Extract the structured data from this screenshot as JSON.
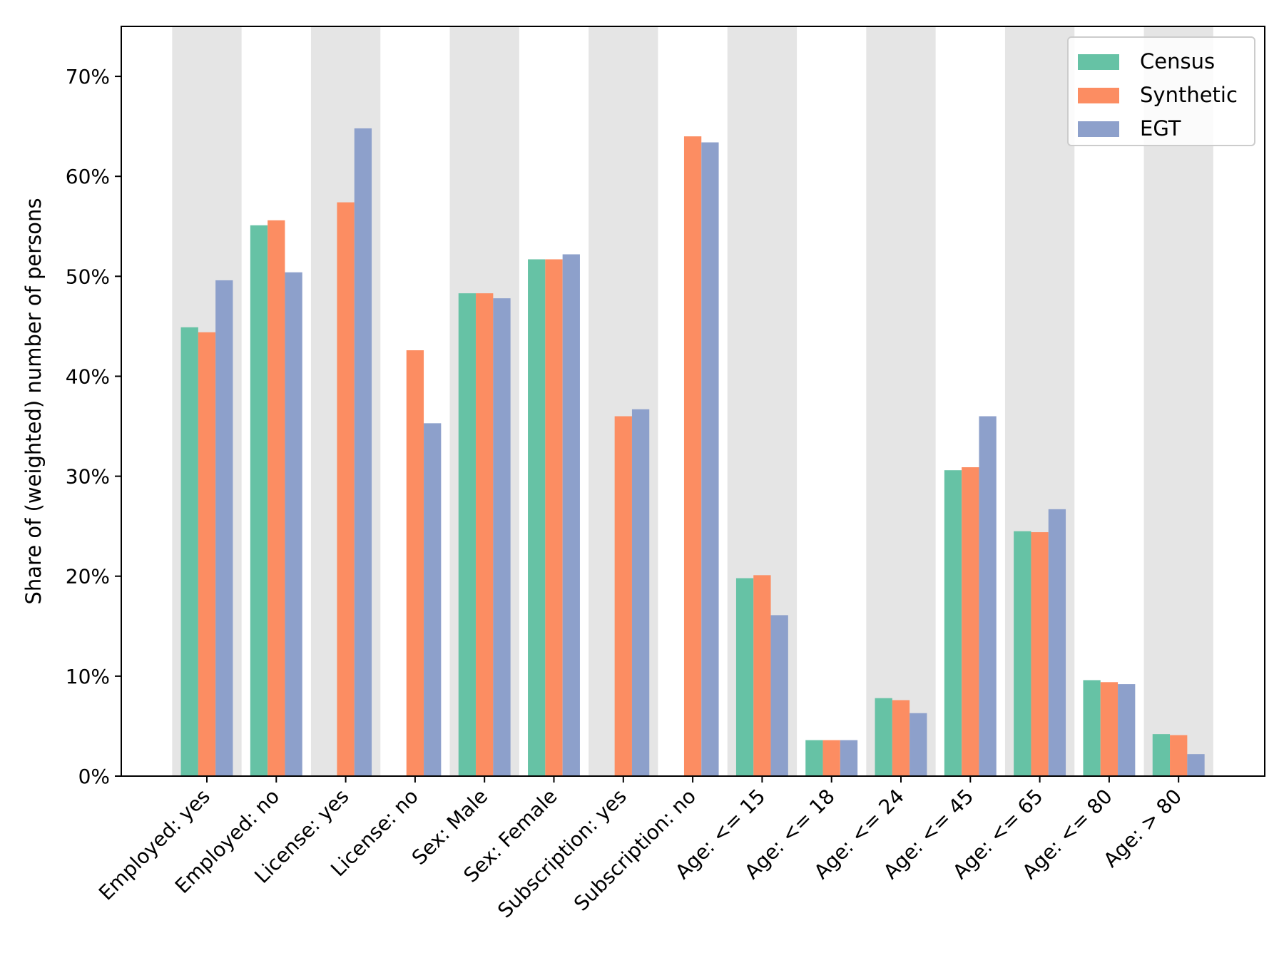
{
  "chart_data": {
    "type": "bar",
    "ylabel": "Share of (weighted) number of persons",
    "xlabel": "",
    "ylim": [
      0,
      75
    ],
    "yticks": [
      0,
      10,
      20,
      30,
      40,
      50,
      60,
      70
    ],
    "ytick_suffix": "%",
    "categories": [
      "Employed: yes",
      "Employed: no",
      "License: yes",
      "License: no",
      "Sex: Male",
      "Sex: Female",
      "Subscription: yes",
      "Subscription: no",
      "Age: <= 15",
      "Age: <= 18",
      "Age: <= 24",
      "Age: <= 45",
      "Age: <= 65",
      "Age: <= 80",
      "Age: > 80"
    ],
    "series": [
      {
        "name": "Census",
        "color": "#66c2a5",
        "values": [
          44.9,
          55.1,
          null,
          null,
          48.3,
          51.7,
          null,
          null,
          19.8,
          3.6,
          7.8,
          30.6,
          24.5,
          9.6,
          4.2
        ]
      },
      {
        "name": "Synthetic",
        "color": "#fc8d62",
        "values": [
          44.4,
          55.6,
          57.4,
          42.6,
          48.3,
          51.7,
          36.0,
          64.0,
          20.1,
          3.6,
          7.6,
          30.9,
          24.4,
          9.4,
          4.1
        ]
      },
      {
        "name": "EGT",
        "color": "#8da0cb",
        "values": [
          49.6,
          50.4,
          64.8,
          35.3,
          47.8,
          52.2,
          36.7,
          63.4,
          16.1,
          3.6,
          6.3,
          36.0,
          26.7,
          9.2,
          2.2
        ]
      }
    ],
    "legend_position": "top-right",
    "alternating_band_color": "#e5e5e5",
    "grid": false
  }
}
